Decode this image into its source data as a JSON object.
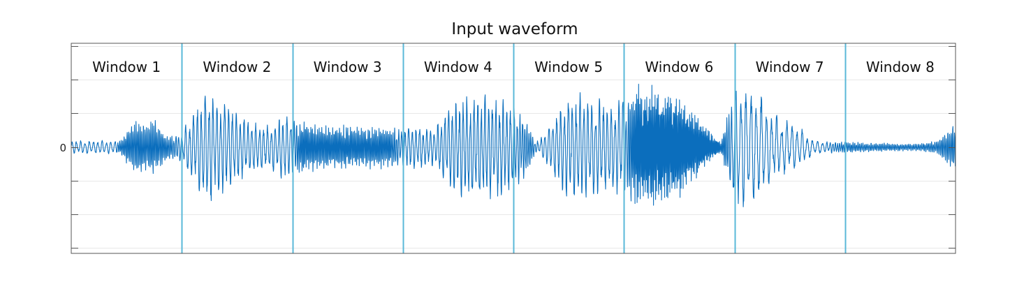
{
  "chart_data": {
    "type": "line",
    "title": "Input waveform",
    "xlabel": "",
    "ylabel": "",
    "y_tick_labels": [
      "0"
    ],
    "grid": true,
    "legend": "none",
    "windows": [
      "Window 1",
      "Window 2",
      "Window 3",
      "Window 4",
      "Window 5",
      "Window 6",
      "Window 7",
      "Window 8"
    ],
    "window_count": 8,
    "envelope_x": [
      0,
      0.04,
      0.055,
      0.07,
      0.095,
      0.11,
      0.125,
      0.14,
      0.15,
      0.18,
      0.2,
      0.225,
      0.24,
      0.25,
      0.27,
      0.29,
      0.31,
      0.33,
      0.36,
      0.39,
      0.41,
      0.43,
      0.445,
      0.455,
      0.47,
      0.49,
      0.515,
      0.525,
      0.53,
      0.56,
      0.58,
      0.61,
      0.625,
      0.64,
      0.655,
      0.675,
      0.7,
      0.72,
      0.735,
      0.75,
      0.765,
      0.78,
      0.79,
      0.8,
      0.82,
      0.84,
      0.855,
      0.875,
      0.9,
      0.92,
      0.94,
      0.96,
      0.98,
      1.0
    ],
    "envelope_y": [
      0.09,
      0.09,
      0.09,
      0.35,
      0.38,
      0.16,
      0.22,
      0.5,
      0.82,
      0.6,
      0.36,
      0.3,
      0.48,
      0.42,
      0.35,
      0.3,
      0.3,
      0.3,
      0.28,
      0.3,
      0.25,
      0.62,
      0.72,
      0.75,
      0.72,
      0.7,
      0.4,
      0.08,
      0.12,
      0.72,
      0.75,
      0.6,
      0.7,
      0.84,
      0.85,
      0.83,
      0.55,
      0.25,
      0.08,
      0.85,
      0.86,
      0.72,
      0.5,
      0.42,
      0.32,
      0.1,
      0.08,
      0.08,
      0.06,
      0.06,
      0.05,
      0.05,
      0.1,
      0.35
    ],
    "frequency_x": [
      0,
      0.05,
      0.055,
      0.11,
      0.125,
      0.25,
      0.26,
      0.36,
      0.375,
      0.5,
      0.52,
      0.53,
      0.625,
      0.64,
      0.73,
      0.75,
      0.85,
      0.875,
      1.0
    ],
    "frequency_y": [
      0.38,
      0.38,
      1.1,
      1.1,
      0.42,
      0.42,
      1.2,
      1.2,
      0.45,
      0.45,
      0.9,
      0.42,
      0.42,
      1.6,
      1.6,
      0.32,
      0.32,
      1.0,
      1.0
    ],
    "ylim": [
      -1,
      1
    ],
    "color": "#0b6ebd",
    "divider_color": "#5ab8d8"
  }
}
